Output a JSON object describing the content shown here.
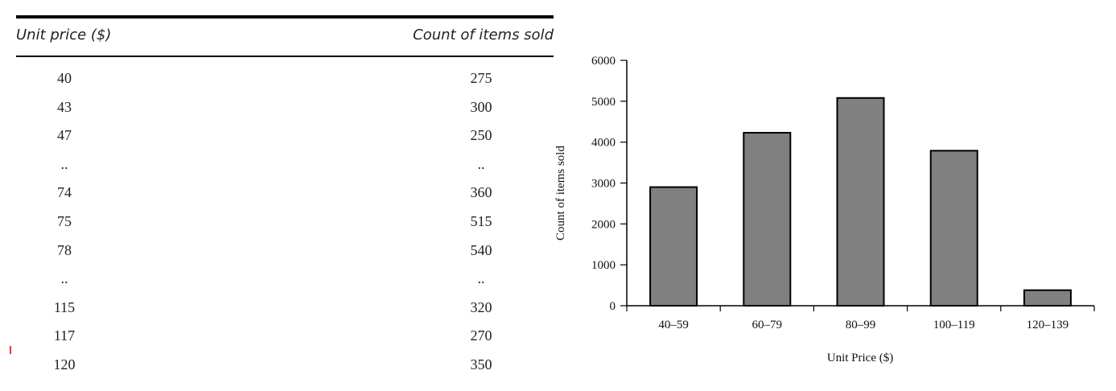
{
  "table": {
    "headers": {
      "price": "Unit price ($)",
      "count": "Count of items sold"
    },
    "rows": [
      {
        "price": "40",
        "count": "275"
      },
      {
        "price": "43",
        "count": "300"
      },
      {
        "price": "47",
        "count": "250"
      },
      {
        "price": "..",
        "count": ".."
      },
      {
        "price": "74",
        "count": "360"
      },
      {
        "price": "75",
        "count": "515"
      },
      {
        "price": "78",
        "count": "540"
      },
      {
        "price": "..",
        "count": ".."
      },
      {
        "price": "115",
        "count": "320"
      },
      {
        "price": "117",
        "count": "270"
      },
      {
        "price": "120",
        "count": "350"
      }
    ]
  },
  "chart_data": {
    "type": "bar",
    "categories": [
      "40–59",
      "60–79",
      "80–99",
      "100–119",
      "120–139"
    ],
    "values": [
      2900,
      4230,
      5080,
      3790,
      380
    ],
    "xlabel": "Unit Price ($)",
    "ylabel": "Count of items sold",
    "ylim": [
      0,
      6000
    ],
    "yticks": [
      0,
      1000,
      2000,
      3000,
      4000,
      5000,
      6000
    ],
    "grid": false,
    "bar_color": "#808080",
    "bar_edge_color": "#000000"
  }
}
